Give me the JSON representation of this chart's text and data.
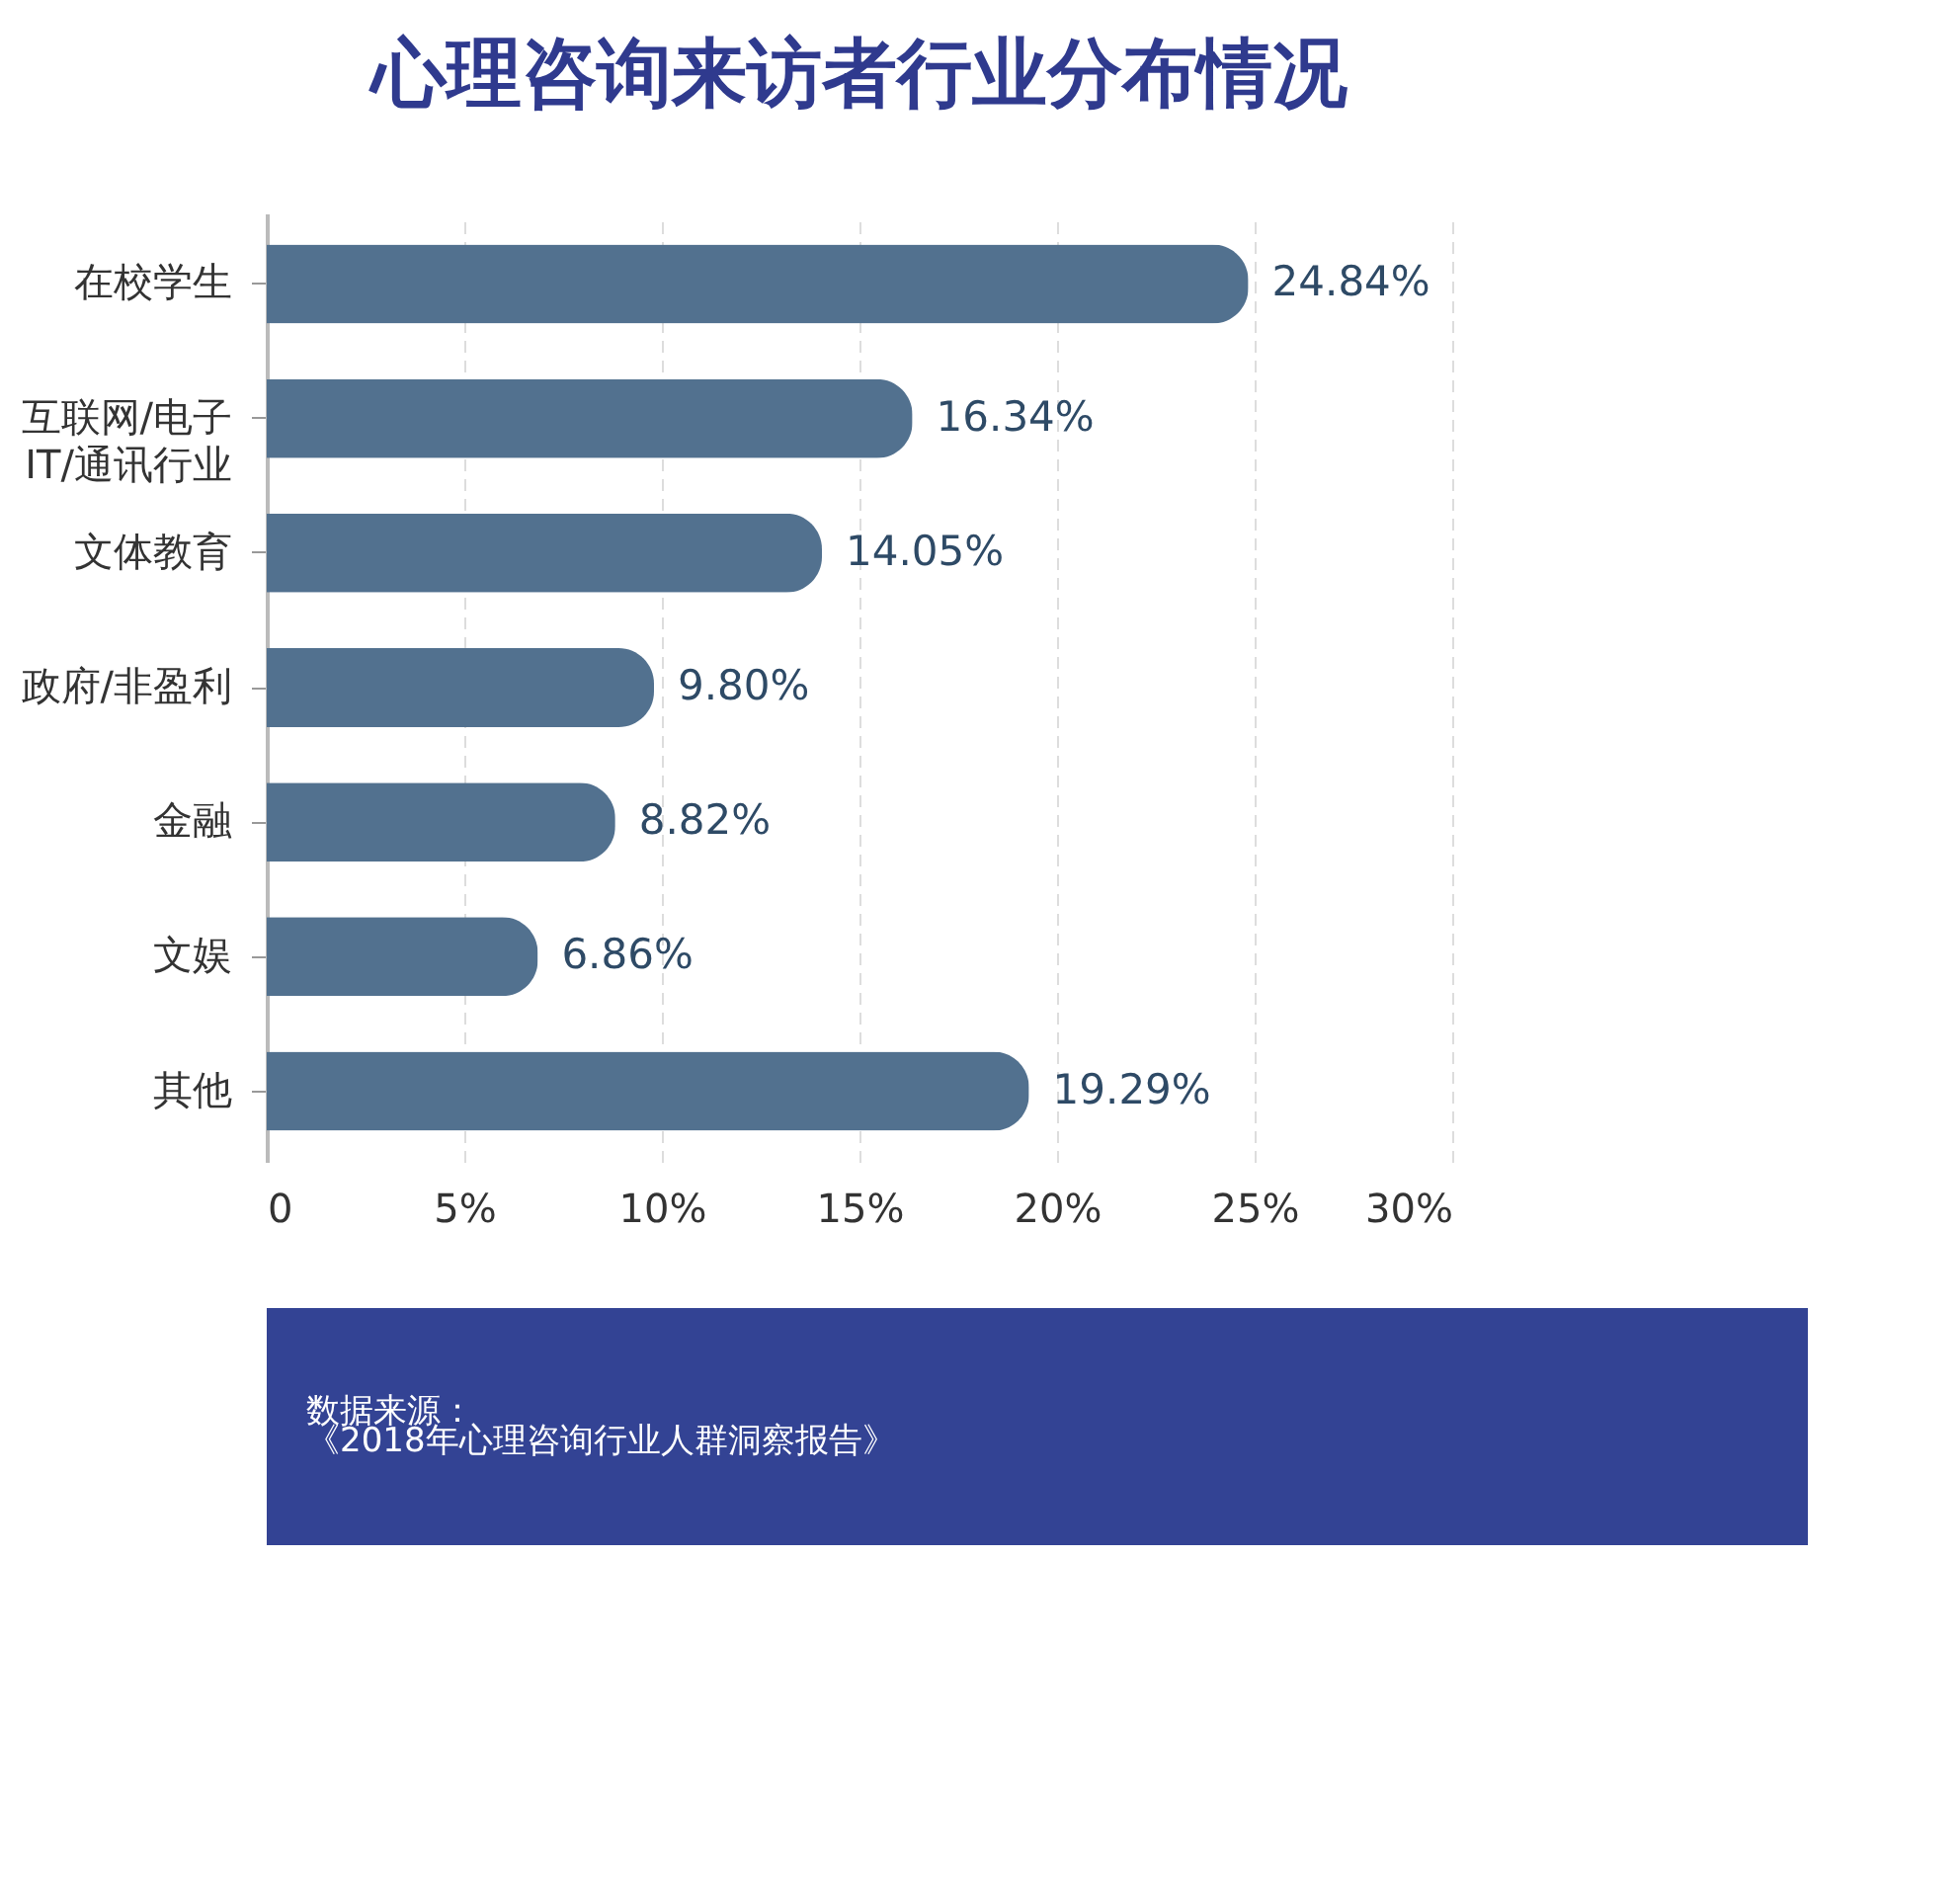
{
  "chart_data": {
    "type": "bar",
    "orientation": "horizontal",
    "title": "心理咨询来访者行业分布情况",
    "categories": [
      "在校学生",
      "互联网/电子\nIT/通讯行业",
      "文体教育",
      "政府/非盈利",
      "金融",
      "文娱",
      "其他"
    ],
    "values": [
      24.84,
      16.34,
      14.05,
      9.8,
      8.82,
      6.86,
      19.29
    ],
    "value_labels": [
      "24.84%",
      "16.34%",
      "14.05%",
      "9.80%",
      "8.82%",
      "6.86%",
      "19.29%"
    ],
    "color": "#52718f",
    "xlim": [
      0,
      30
    ],
    "xticks": [
      0,
      {
        "value": 5,
        "label": "5%"
      },
      {
        "value": 10,
        "label": "10%"
      },
      {
        "value": 15,
        "label": "15%"
      },
      {
        "value": 20,
        "label": "20%"
      },
      {
        "value": 25,
        "label": "25%"
      },
      {
        "value": 30,
        "label": "30%"
      }
    ],
    "grid": "x",
    "annotations": [
      "数据来源：",
      "《2018年心理咨询行业人群洞察报告》"
    ]
  }
}
